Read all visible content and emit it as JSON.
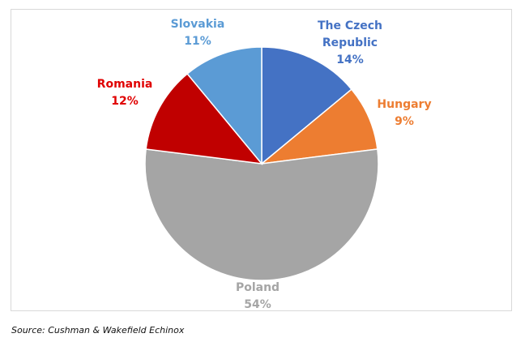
{
  "chart_data": {
    "type": "pie",
    "slices": [
      {
        "label_lines": [
          "The Czech",
          "Republic"
        ],
        "value": 14,
        "value_label": "14%",
        "color": "#4472c4"
      },
      {
        "label_lines": [
          "Hungary"
        ],
        "value": 9,
        "value_label": "9%",
        "color": "#ed7d31"
      },
      {
        "label_lines": [
          "Poland"
        ],
        "value": 54,
        "value_label": "54%",
        "color": "#a5a5a5"
      },
      {
        "label_lines": [
          "Romania"
        ],
        "value": 12,
        "value_label": "12%",
        "color": "#c00000"
      },
      {
        "label_lines": [
          "Slovakia"
        ],
        "value": 11,
        "value_label": "11%",
        "color": "#5b9bd5"
      }
    ],
    "label_colors": {
      "The Czech Republic": "#4472c4",
      "Hungary": "#ed7d31",
      "Poland": "#a5a5a5",
      "Romania": "#e00000",
      "Slovakia": "#5b9bd5"
    },
    "start_angle_deg": 0,
    "direction": "clockwise"
  },
  "source": "Source: Cushman & Wakefield Echinox"
}
